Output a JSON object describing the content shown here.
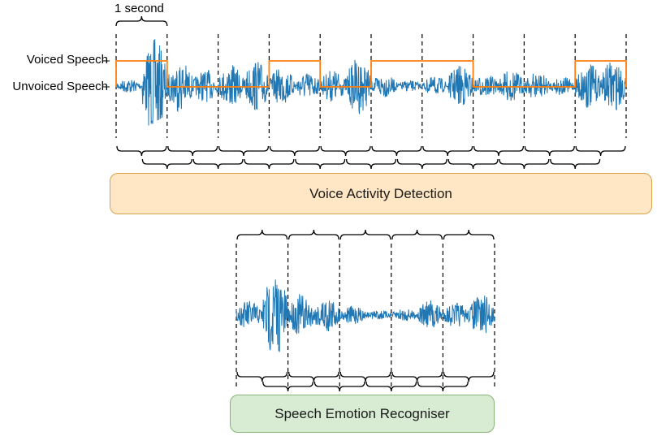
{
  "labels": {
    "one_second": "1 second",
    "voiced": "Voiced Speech",
    "unvoiced": "Unvoiced Speech"
  },
  "boxes": {
    "vad": "Voice Activity Detection",
    "ser": "Speech Emotion Recogniser"
  },
  "colors": {
    "waveform": "#1f77b4",
    "voicing": "#ff7f0e",
    "vad_fill": "#ffe6c4",
    "vad_border": "#d9a34c",
    "ser_fill": "#d8ebd3",
    "ser_border": "#87b477"
  },
  "segments": {
    "seconds_total": 10,
    "voicing_sequence": [
      "voiced",
      "unvoiced",
      "unvoiced",
      "voiced",
      "unvoiced",
      "voiced",
      "voiced",
      "unvoiced",
      "unvoiced",
      "voiced"
    ],
    "voiced_seconds_kept": 5
  }
}
